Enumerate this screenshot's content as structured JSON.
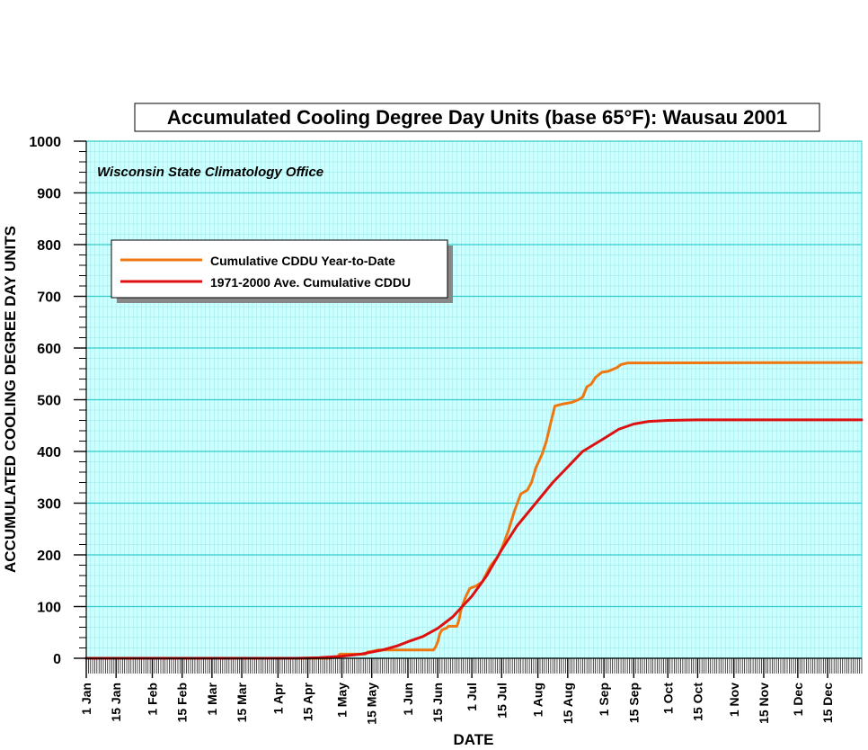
{
  "chart_data": {
    "type": "line",
    "title": "Accumulated Cooling Degree Day Units (base 65°F): Wausau 2001",
    "annotation": "Wisconsin State Climatology Office",
    "xlabel": "DATE",
    "ylabel": "ACCUMULATED COOLING DEGREE DAY UNITS",
    "xlim": [
      "2001-01-01",
      "2001-12-31"
    ],
    "ylim": [
      0,
      1000
    ],
    "yticks": [
      0,
      100,
      200,
      300,
      400,
      500,
      600,
      700,
      800,
      900,
      1000
    ],
    "xticks": [
      {
        "date": "2001-01-01",
        "label": "1 Jan"
      },
      {
        "date": "2001-01-15",
        "label": "15 Jan"
      },
      {
        "date": "2001-02-01",
        "label": "1 Feb"
      },
      {
        "date": "2001-02-15",
        "label": "15 Feb"
      },
      {
        "date": "2001-03-01",
        "label": "1 Mar"
      },
      {
        "date": "2001-03-15",
        "label": "15 Mar"
      },
      {
        "date": "2001-04-01",
        "label": "1 Apr"
      },
      {
        "date": "2001-04-15",
        "label": "15 Apr"
      },
      {
        "date": "2001-05-01",
        "label": "1 May"
      },
      {
        "date": "2001-05-15",
        "label": "15 May"
      },
      {
        "date": "2001-06-01",
        "label": "1 Jun"
      },
      {
        "date": "2001-06-15",
        "label": "15 Jun"
      },
      {
        "date": "2001-07-01",
        "label": "1 Jul"
      },
      {
        "date": "2001-07-15",
        "label": "15 Jul"
      },
      {
        "date": "2001-08-01",
        "label": "1 Aug"
      },
      {
        "date": "2001-08-15",
        "label": "15 Aug"
      },
      {
        "date": "2001-09-01",
        "label": "1 Sep"
      },
      {
        "date": "2001-09-15",
        "label": "15 Sep"
      },
      {
        "date": "2001-10-01",
        "label": "1 Oct"
      },
      {
        "date": "2001-10-15",
        "label": "15 Oct"
      },
      {
        "date": "2001-11-01",
        "label": "1 Nov"
      },
      {
        "date": "2001-11-15",
        "label": "15 Nov"
      },
      {
        "date": "2001-12-01",
        "label": "1 Dec"
      },
      {
        "date": "2001-12-15",
        "label": "15 Dec"
      }
    ],
    "grid": true,
    "legend_position": "top-left",
    "colors": {
      "plot_background": "#ccffff",
      "major_grid": "#33cccc",
      "minor_grid": "#99e6e6"
    },
    "series": [
      {
        "name": "Cumulative CDDU Year-to-Date",
        "color": "#ee7711",
        "points": [
          [
            "2001-01-01",
            0
          ],
          [
            "2001-04-25",
            0
          ],
          [
            "2001-04-29",
            3
          ],
          [
            "2001-04-30",
            8
          ],
          [
            "2001-05-12",
            8
          ],
          [
            "2001-05-13",
            12
          ],
          [
            "2001-05-15",
            13
          ],
          [
            "2001-05-18",
            16
          ],
          [
            "2001-06-13",
            16
          ],
          [
            "2001-06-14",
            22
          ],
          [
            "2001-06-15",
            32
          ],
          [
            "2001-06-16",
            48
          ],
          [
            "2001-06-17",
            55
          ],
          [
            "2001-06-19",
            58
          ],
          [
            "2001-06-20",
            62
          ],
          [
            "2001-06-24",
            62
          ],
          [
            "2001-06-25",
            75
          ],
          [
            "2001-06-26",
            95
          ],
          [
            "2001-06-28",
            118
          ],
          [
            "2001-06-30",
            135
          ],
          [
            "2001-07-03",
            140
          ],
          [
            "2001-07-06",
            148
          ],
          [
            "2001-07-08",
            165
          ],
          [
            "2001-07-10",
            180
          ],
          [
            "2001-07-13",
            195
          ],
          [
            "2001-07-15",
            212
          ],
          [
            "2001-07-18",
            245
          ],
          [
            "2001-07-21",
            285
          ],
          [
            "2001-07-24",
            318
          ],
          [
            "2001-07-27",
            325
          ],
          [
            "2001-07-29",
            340
          ],
          [
            "2001-07-31",
            368
          ],
          [
            "2001-08-03",
            395
          ],
          [
            "2001-08-05",
            420
          ],
          [
            "2001-08-07",
            455
          ],
          [
            "2001-08-09",
            488
          ],
          [
            "2001-08-11",
            490
          ],
          [
            "2001-08-13",
            492
          ],
          [
            "2001-08-17",
            495
          ],
          [
            "2001-08-20",
            500
          ],
          [
            "2001-08-22",
            505
          ],
          [
            "2001-08-24",
            525
          ],
          [
            "2001-08-26",
            530
          ],
          [
            "2001-08-28",
            543
          ],
          [
            "2001-08-31",
            553
          ],
          [
            "2001-09-03",
            555
          ],
          [
            "2001-09-07",
            562
          ],
          [
            "2001-09-09",
            568
          ],
          [
            "2001-09-12",
            571
          ],
          [
            "2001-12-31",
            572
          ]
        ]
      },
      {
        "name": "1971-2000 Ave. Cumulative CDDU",
        "color": "#dd1111",
        "points": [
          [
            "2001-01-01",
            0
          ],
          [
            "2001-04-10",
            0
          ],
          [
            "2001-04-20",
            1
          ],
          [
            "2001-05-01",
            4
          ],
          [
            "2001-05-10",
            8
          ],
          [
            "2001-05-20",
            16
          ],
          [
            "2001-05-27",
            24
          ],
          [
            "2001-06-01",
            32
          ],
          [
            "2001-06-08",
            42
          ],
          [
            "2001-06-15",
            58
          ],
          [
            "2001-06-22",
            80
          ],
          [
            "2001-07-01",
            120
          ],
          [
            "2001-07-08",
            160
          ],
          [
            "2001-07-15",
            210
          ],
          [
            "2001-07-22",
            255
          ],
          [
            "2001-08-01",
            305
          ],
          [
            "2001-08-08",
            340
          ],
          [
            "2001-08-15",
            370
          ],
          [
            "2001-08-22",
            400
          ],
          [
            "2001-09-01",
            425
          ],
          [
            "2001-09-08",
            443
          ],
          [
            "2001-09-15",
            453
          ],
          [
            "2001-09-22",
            458
          ],
          [
            "2001-10-01",
            460
          ],
          [
            "2001-10-15",
            461
          ],
          [
            "2001-12-31",
            461
          ]
        ]
      }
    ]
  }
}
